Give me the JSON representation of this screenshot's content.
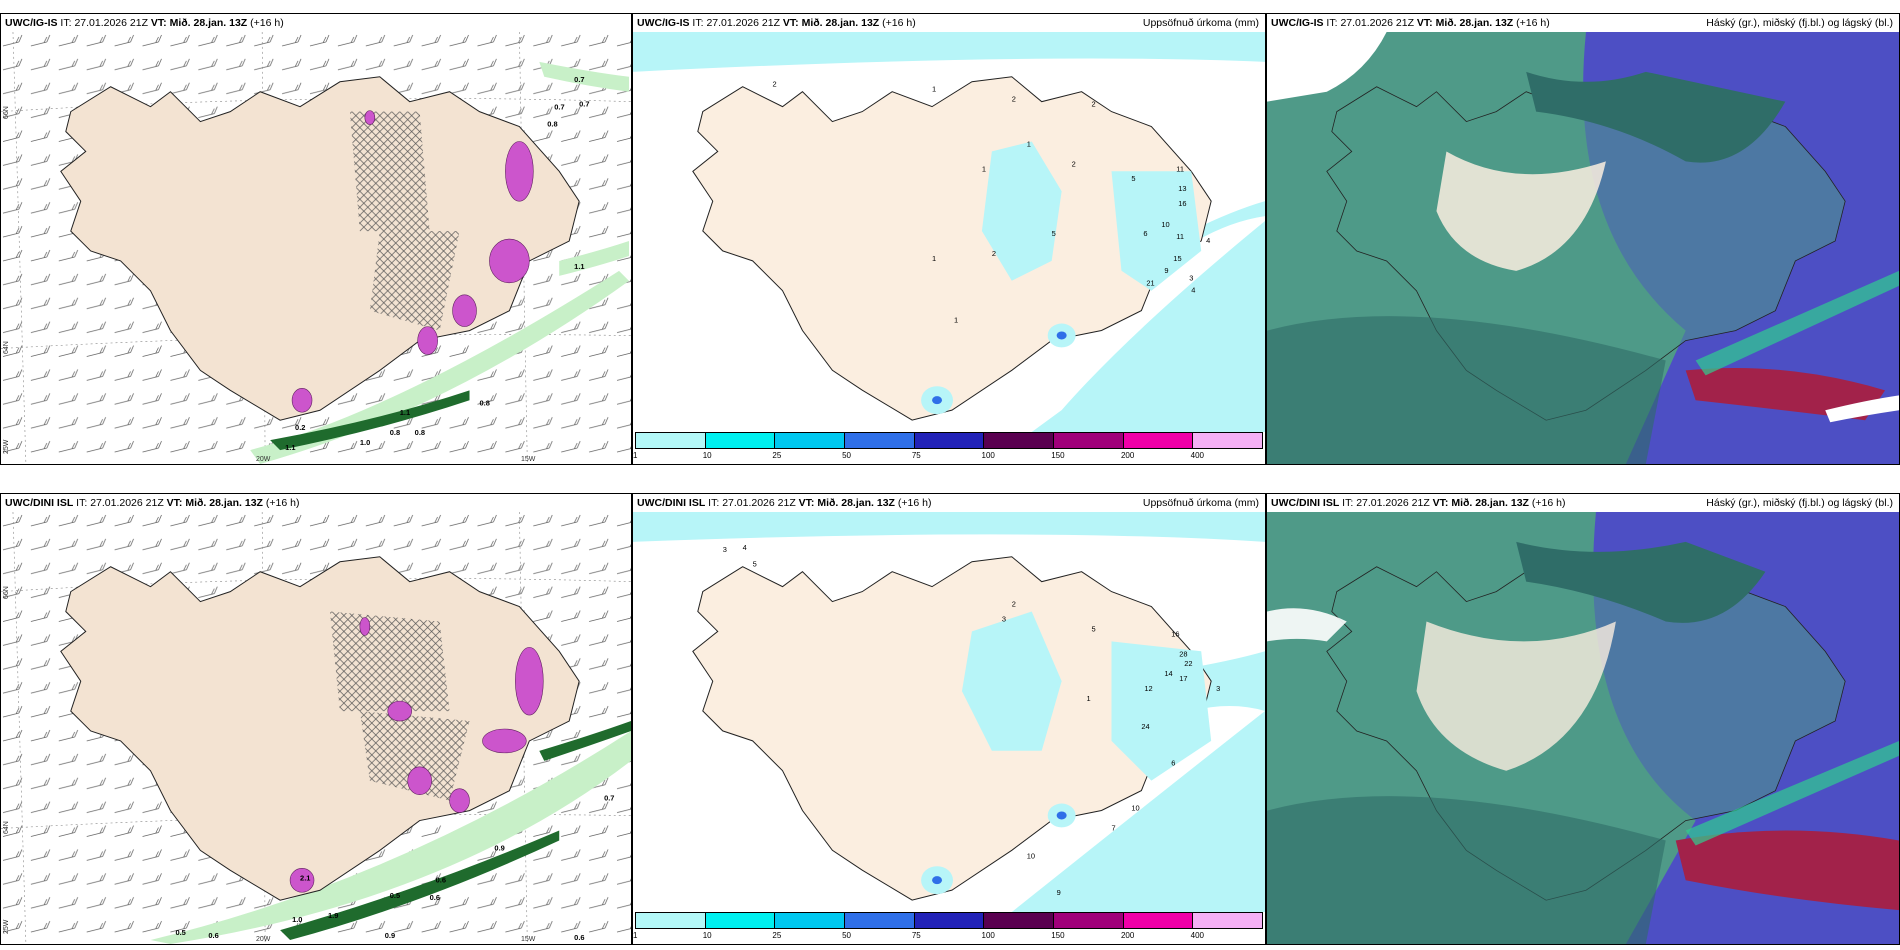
{
  "panels": {
    "p1": {
      "model": "UWC/IG-IS",
      "it_label": "IT:",
      "it": "27.01.2026 21Z",
      "vt_label": "VT:",
      "vt": "Mið. 28.jan. 13Z",
      "lead": "(+16 h)",
      "title": ""
    },
    "p2": {
      "model": "UWC/IG-IS",
      "it_label": "IT:",
      "it": "27.01.2026 21Z",
      "vt_label": "VT:",
      "vt": "Mið. 28.jan. 13Z",
      "lead": "(+16 h)",
      "title": "Uppsöfnuð úrkoma (mm)"
    },
    "p3": {
      "model": "UWC/IG-IS",
      "it_label": "IT:",
      "it": "27.01.2026 21Z",
      "vt_label": "VT:",
      "vt": "Mið. 28.jan. 13Z",
      "lead": "(+16 h)",
      "title": "Háský (gr.), miðský (fj.bl.) og lágský (bl.)"
    },
    "p4": {
      "model": "UWC/DINI ISL",
      "it_label": "IT:",
      "it": "27.01.2026 21Z",
      "vt_label": "VT:",
      "vt": "Mið. 28.jan. 13Z",
      "lead": "(+16 h)",
      "title": ""
    },
    "p5": {
      "model": "UWC/DINI ISL",
      "it_label": "IT:",
      "it": "27.01.2026 21Z",
      "vt_label": "VT:",
      "vt": "Mið. 28.jan. 13Z",
      "lead": "(+16 h)",
      "title": "Uppsöfnuð úrkoma (mm)"
    },
    "p6": {
      "model": "UWC/DINI ISL",
      "it_label": "IT:",
      "it": "27.01.2026 21Z",
      "vt_label": "VT:",
      "vt": "Mið. 28.jan. 13Z",
      "lead": "(+16 h)",
      "title": "Háský (gr.), miðský (fj.bl.) og lágský (bl.)"
    }
  },
  "axes": {
    "lat66": "66N",
    "lat64": "64N",
    "lon25": "25W",
    "lon20": "20W",
    "lon15": "15W"
  },
  "legend": {
    "ticks": [
      "1",
      "10",
      "25",
      "50",
      "75",
      "100",
      "150",
      "200",
      "400"
    ],
    "colors": [
      "#b3f8f8",
      "#00f0f0",
      "#00c8f0",
      "#2f6fe8",
      "#2222b8",
      "#5a0050",
      "#a0007a",
      "#f000a8",
      "#f5b0f5"
    ]
  },
  "colors": {
    "land": "#fbeee0",
    "land_dark": "#f1dcc6",
    "precip_light": "#b7f5f8",
    "green_light": "#c8f0c8",
    "green_dark": "#1f6b2d",
    "magenta": "#cc55cc",
    "cloud_teal": "#4f9a88",
    "cloud_blue": "#4d4fc4",
    "cloud_red": "#a2224a"
  },
  "values": {
    "p1": [
      "0.7",
      "0.7",
      "0.8",
      "0.2",
      "1.1",
      "1.1",
      "0.8",
      "0.8",
      "0.8",
      "1.0",
      "1.1",
      "0.7"
    ],
    "p2": [
      "2",
      "1",
      "2",
      "2",
      "1",
      "1",
      "2",
      "5",
      "11",
      "15",
      "21",
      "13",
      "9",
      "4",
      "3",
      "6",
      "10",
      "16",
      "11",
      "4",
      "1",
      "2",
      "5",
      "1"
    ],
    "p4": [
      "0.7",
      "0.5",
      "0.6",
      "0.6",
      "2.1",
      "1.9",
      "0.9",
      "0.5",
      "0.6",
      "0.9",
      "1.0",
      "0.6"
    ],
    "p5": [
      "3",
      "4",
      "5",
      "2",
      "3",
      "5",
      "16",
      "22",
      "14",
      "28",
      "17",
      "24",
      "12",
      "6",
      "10",
      "7",
      "10",
      "9",
      "3",
      "1"
    ]
  }
}
